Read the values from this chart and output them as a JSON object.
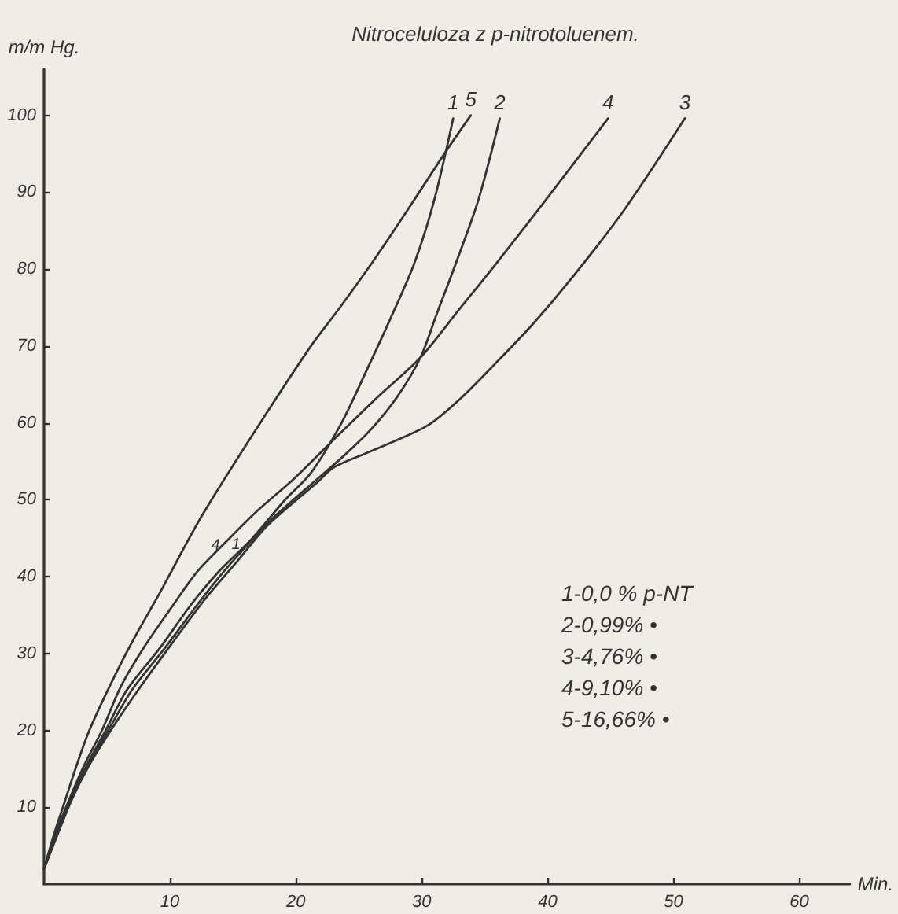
{
  "chart_data": {
    "type": "line",
    "title": "Nitroceluloza z p-nitrotoluenem.",
    "xlabel": "Min.",
    "ylabel": "m/m Hg.",
    "xlim": [
      0,
      64
    ],
    "ylim": [
      0,
      106
    ],
    "xticks": [
      10,
      20,
      30,
      40,
      50,
      60
    ],
    "yticks": [
      10,
      20,
      30,
      40,
      50,
      60,
      70,
      80,
      90,
      100
    ],
    "grid": false,
    "legend": false,
    "series": [
      {
        "name": "1",
        "color": "#333333",
        "x": [
          0,
          0.9,
          2.1,
          3.4,
          4.9,
          6.6,
          9.2,
          11.7,
          13.9,
          16.5,
          19.1,
          21.2,
          23.6,
          25.5,
          27.5,
          29.4,
          31,
          32.5
        ],
        "values": [
          2,
          6.3,
          11,
          15.5,
          20,
          25.3,
          30.7,
          36.4,
          40.7,
          44.9,
          49.9,
          53.5,
          59.9,
          66.4,
          73.5,
          80.7,
          89,
          99.6
        ]
      },
      {
        "name": "2",
        "color": "#333333",
        "x": [
          0,
          1,
          2.2,
          3.5,
          5.1,
          7,
          9.6,
          12.2,
          14.3,
          16.6,
          18.3,
          20.8,
          23.8,
          26,
          28.1,
          29.9,
          31.2,
          32.7,
          34.5,
          36.2
        ],
        "values": [
          2,
          6.2,
          11,
          15.5,
          20,
          25.3,
          30.7,
          36.4,
          40.7,
          44.9,
          47.8,
          51.4,
          55.7,
          59.2,
          63.5,
          68.5,
          74.2,
          80.7,
          89,
          99.6
        ]
      },
      {
        "name": "3",
        "color": "#333333",
        "x": [
          0,
          1,
          2.2,
          3.6,
          5.3,
          7.5,
          10.2,
          12.8,
          15.4,
          17.6,
          20,
          21.8,
          23,
          25.5,
          28.1,
          30.7,
          33.3,
          35.9,
          38.8,
          42,
          46,
          50.9
        ],
        "values": [
          2,
          6.2,
          11,
          15.5,
          20,
          25.3,
          31.4,
          37.1,
          42.1,
          46.4,
          49.9,
          52.4,
          54.2,
          56,
          57.8,
          59.9,
          63.5,
          67.8,
          72.8,
          79,
          87.5,
          99.6
        ]
      },
      {
        "name": "4",
        "color": "#333333",
        "x": [
          0,
          0.9,
          2,
          3.2,
          4.6,
          6.1,
          7.9,
          10,
          12.2,
          14.5,
          16.9,
          19.9,
          23,
          26.4,
          29.9,
          32.9,
          35.9,
          40,
          44.8
        ],
        "values": [
          2,
          6.5,
          11,
          15.5,
          20,
          25.7,
          30.7,
          35.7,
          40.7,
          44.6,
          48.5,
          52.8,
          57.8,
          63.2,
          68.5,
          74.6,
          80.7,
          89.3,
          99.6
        ]
      },
      {
        "name": "5",
        "color": "#333333",
        "x": [
          0,
          0.8,
          1.7,
          2.6,
          3.6,
          5.2,
          7,
          9.2,
          12.5,
          16.9,
          21.2,
          23.5,
          26,
          29,
          32,
          33.9
        ],
        "values": [
          2,
          6.5,
          11,
          15.5,
          20,
          25.7,
          31.5,
          37.9,
          47.8,
          59.3,
          70,
          75,
          80.7,
          88,
          95.5,
          100
        ]
      }
    ],
    "annotations": [
      "1-0,0 % p-NT",
      "2-0,99% •",
      "3-4,76% •",
      "4-9,10% •",
      "5-16,66% •",
      "4",
      "1"
    ]
  }
}
